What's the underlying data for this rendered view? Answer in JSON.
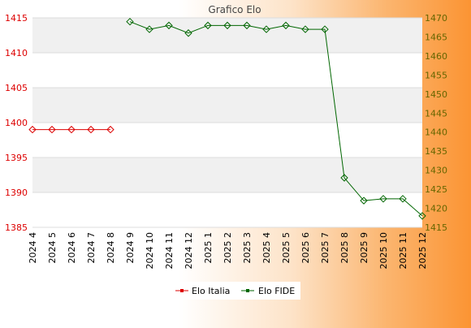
{
  "chart_data": {
    "type": "line",
    "title": "Grafico Elo",
    "categories": [
      "2024 4",
      "2024 5",
      "2024 6",
      "2024 7",
      "2024 8",
      "2024 9",
      "2024 10",
      "2024 11",
      "2024 12",
      "2025 1",
      "2025 2",
      "2025 3",
      "2025 4",
      "2025 5",
      "2025 6",
      "2025 7",
      "2025 8",
      "2025 9",
      "2025 10",
      "2025 11",
      "2025 12"
    ],
    "left_axis": {
      "min": 1385,
      "max": 1415,
      "ticks": [
        1385,
        1390,
        1395,
        1400,
        1405,
        1410,
        1415
      ],
      "color": "#dd0000"
    },
    "right_axis": {
      "min": 1415,
      "max": 1470,
      "ticks": [
        1415,
        1420,
        1425,
        1430,
        1435,
        1440,
        1445,
        1450,
        1455,
        1460,
        1465,
        1470
      ],
      "color": "#666600"
    },
    "series": [
      {
        "name": "Elo Italia",
        "axis": "left",
        "color": "#dd0000",
        "values": [
          1399,
          1399,
          1399,
          1399,
          1399,
          null,
          null,
          null,
          null,
          null,
          null,
          null,
          null,
          null,
          null,
          null,
          null,
          null,
          null,
          null,
          null
        ]
      },
      {
        "name": "Elo FIDE",
        "axis": "right",
        "color": "#006600",
        "values": [
          null,
          null,
          null,
          null,
          null,
          1469,
          1467,
          1468,
          1466,
          1468,
          1468,
          1468,
          1467,
          1468,
          1467,
          1467,
          1428,
          1422,
          1422.5,
          1422.5,
          1418
        ]
      }
    ],
    "grid": true,
    "legend": "bottom-center"
  }
}
